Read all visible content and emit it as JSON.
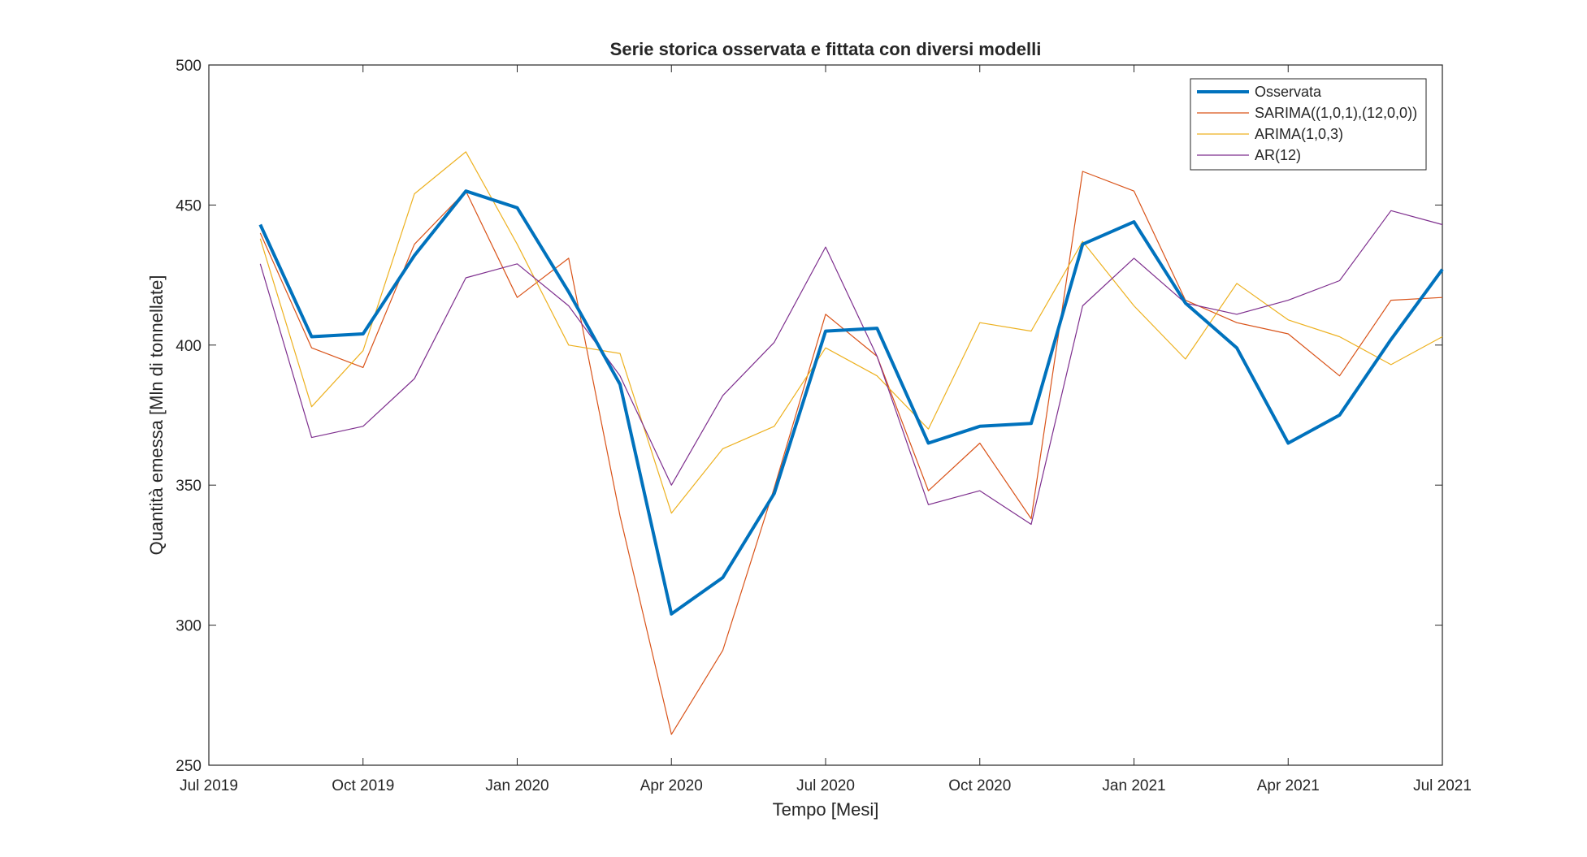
{
  "chart_data": {
    "type": "line",
    "title": "Serie storica osservata e fittata con diversi modelli",
    "xlabel": "Tempo [Mesi]",
    "ylabel": "Quantità emessa [Mln di tonnellate]",
    "ylim": [
      250,
      500
    ],
    "yticks": [
      250,
      300,
      350,
      400,
      450,
      500
    ],
    "xlim": [
      "2019-07",
      "2021-07"
    ],
    "xticks": [
      {
        "value": "2019-07",
        "label": "Jul 2019"
      },
      {
        "value": "2019-10",
        "label": "Oct 2019"
      },
      {
        "value": "2020-01",
        "label": "Jan 2020"
      },
      {
        "value": "2020-04",
        "label": "Apr 2020"
      },
      {
        "value": "2020-07",
        "label": "Jul 2020"
      },
      {
        "value": "2020-10",
        "label": "Oct 2020"
      },
      {
        "value": "2021-01",
        "label": "Jan 2021"
      },
      {
        "value": "2021-04",
        "label": "Apr 2021"
      },
      {
        "value": "2021-07",
        "label": "Jul 2021"
      }
    ],
    "grid": false,
    "legend_position": "top-right",
    "x": [
      "2019-08",
      "2019-09",
      "2019-10",
      "2019-11",
      "2019-12",
      "2020-01",
      "2020-02",
      "2020-03",
      "2020-04",
      "2020-05",
      "2020-06",
      "2020-07",
      "2020-08",
      "2020-09",
      "2020-10",
      "2020-11",
      "2020-12",
      "2021-01",
      "2021-02",
      "2021-03",
      "2021-04",
      "2021-05",
      "2021-06",
      "2021-07"
    ],
    "series": [
      {
        "name": "Osservata",
        "color": "#0072BD",
        "values": [
          443,
          403,
          404,
          432,
          455,
          449,
          419,
          386,
          304,
          317,
          347,
          405,
          406,
          365,
          371,
          372,
          436,
          444,
          415,
          399,
          365,
          375,
          402,
          427
        ]
      },
      {
        "name": "SARIMA((1,0,1),(12,0,0))",
        "color": "#D95319",
        "values": [
          440,
          399,
          392,
          436,
          455,
          417,
          431,
          339,
          261,
          291,
          349,
          411,
          396,
          348,
          365,
          338,
          462,
          455,
          416,
          408,
          404,
          389,
          416,
          417
        ]
      },
      {
        "name": "ARIMA(1,0,3)",
        "color": "#EDB120",
        "values": [
          438,
          378,
          398,
          454,
          469,
          436,
          400,
          397,
          340,
          363,
          371,
          399,
          389,
          370,
          408,
          405,
          437,
          414,
          395,
          422,
          409,
          403,
          393,
          403
        ]
      },
      {
        "name": "AR(12)",
        "color": "#7E2F8E",
        "values": [
          429,
          367,
          371,
          388,
          424,
          429,
          414,
          389,
          350,
          382,
          401,
          435,
          396,
          343,
          348,
          336,
          414,
          431,
          415,
          411,
          416,
          423,
          448,
          443
        ]
      }
    ]
  }
}
